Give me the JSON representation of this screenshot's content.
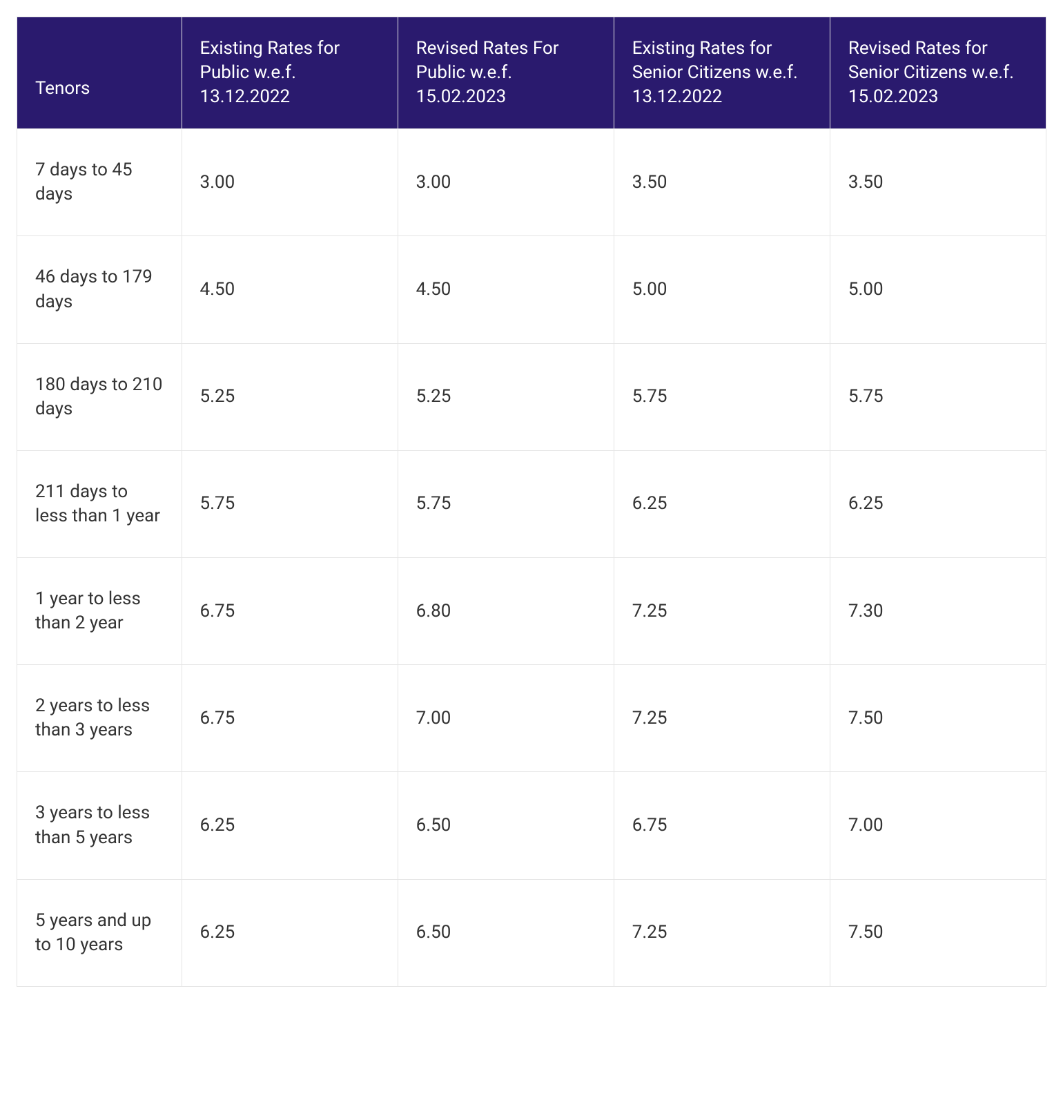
{
  "table": {
    "type": "table",
    "header_bg": "#2a1a6e",
    "header_text_color": "#ffffff",
    "cell_bg": "#ffffff",
    "cell_text_color": "#333333",
    "border_color": "#e5e5e5",
    "font_size_pt": 20,
    "columns": [
      "Tenors",
      "Existing Rates for Public w.e.f. 13.12.2022",
      "Revised Rates For Public w.e.f. 15.02.2023",
      "Existing Rates for Senior Citizens w.e.f. 13.12.2022",
      "Revised Rates for Senior Citizens w.e.f. 15.02.2023"
    ],
    "rows": [
      [
        "7 days to 45 days",
        "3.00",
        "3.00",
        "3.50",
        "3.50"
      ],
      [
        "46 days to 179 days",
        "4.50",
        "4.50",
        "5.00",
        "5.00"
      ],
      [
        "180 days to 210 days",
        "5.25",
        "5.25",
        "5.75",
        "5.75"
      ],
      [
        "211 days to less than 1 year",
        "5.75",
        "5.75",
        "6.25",
        "6.25"
      ],
      [
        "1 year to less than 2 year",
        "6.75",
        "6.80",
        "7.25",
        "7.30"
      ],
      [
        "2 years to less than 3 years",
        "6.75",
        "7.00",
        "7.25",
        "7.50"
      ],
      [
        "3 years to less than 5 years",
        "6.25",
        "6.50",
        "6.75",
        "7.00"
      ],
      [
        "5 years and up to 10 years",
        "6.25",
        "6.50",
        "7.25",
        "7.50"
      ]
    ]
  }
}
